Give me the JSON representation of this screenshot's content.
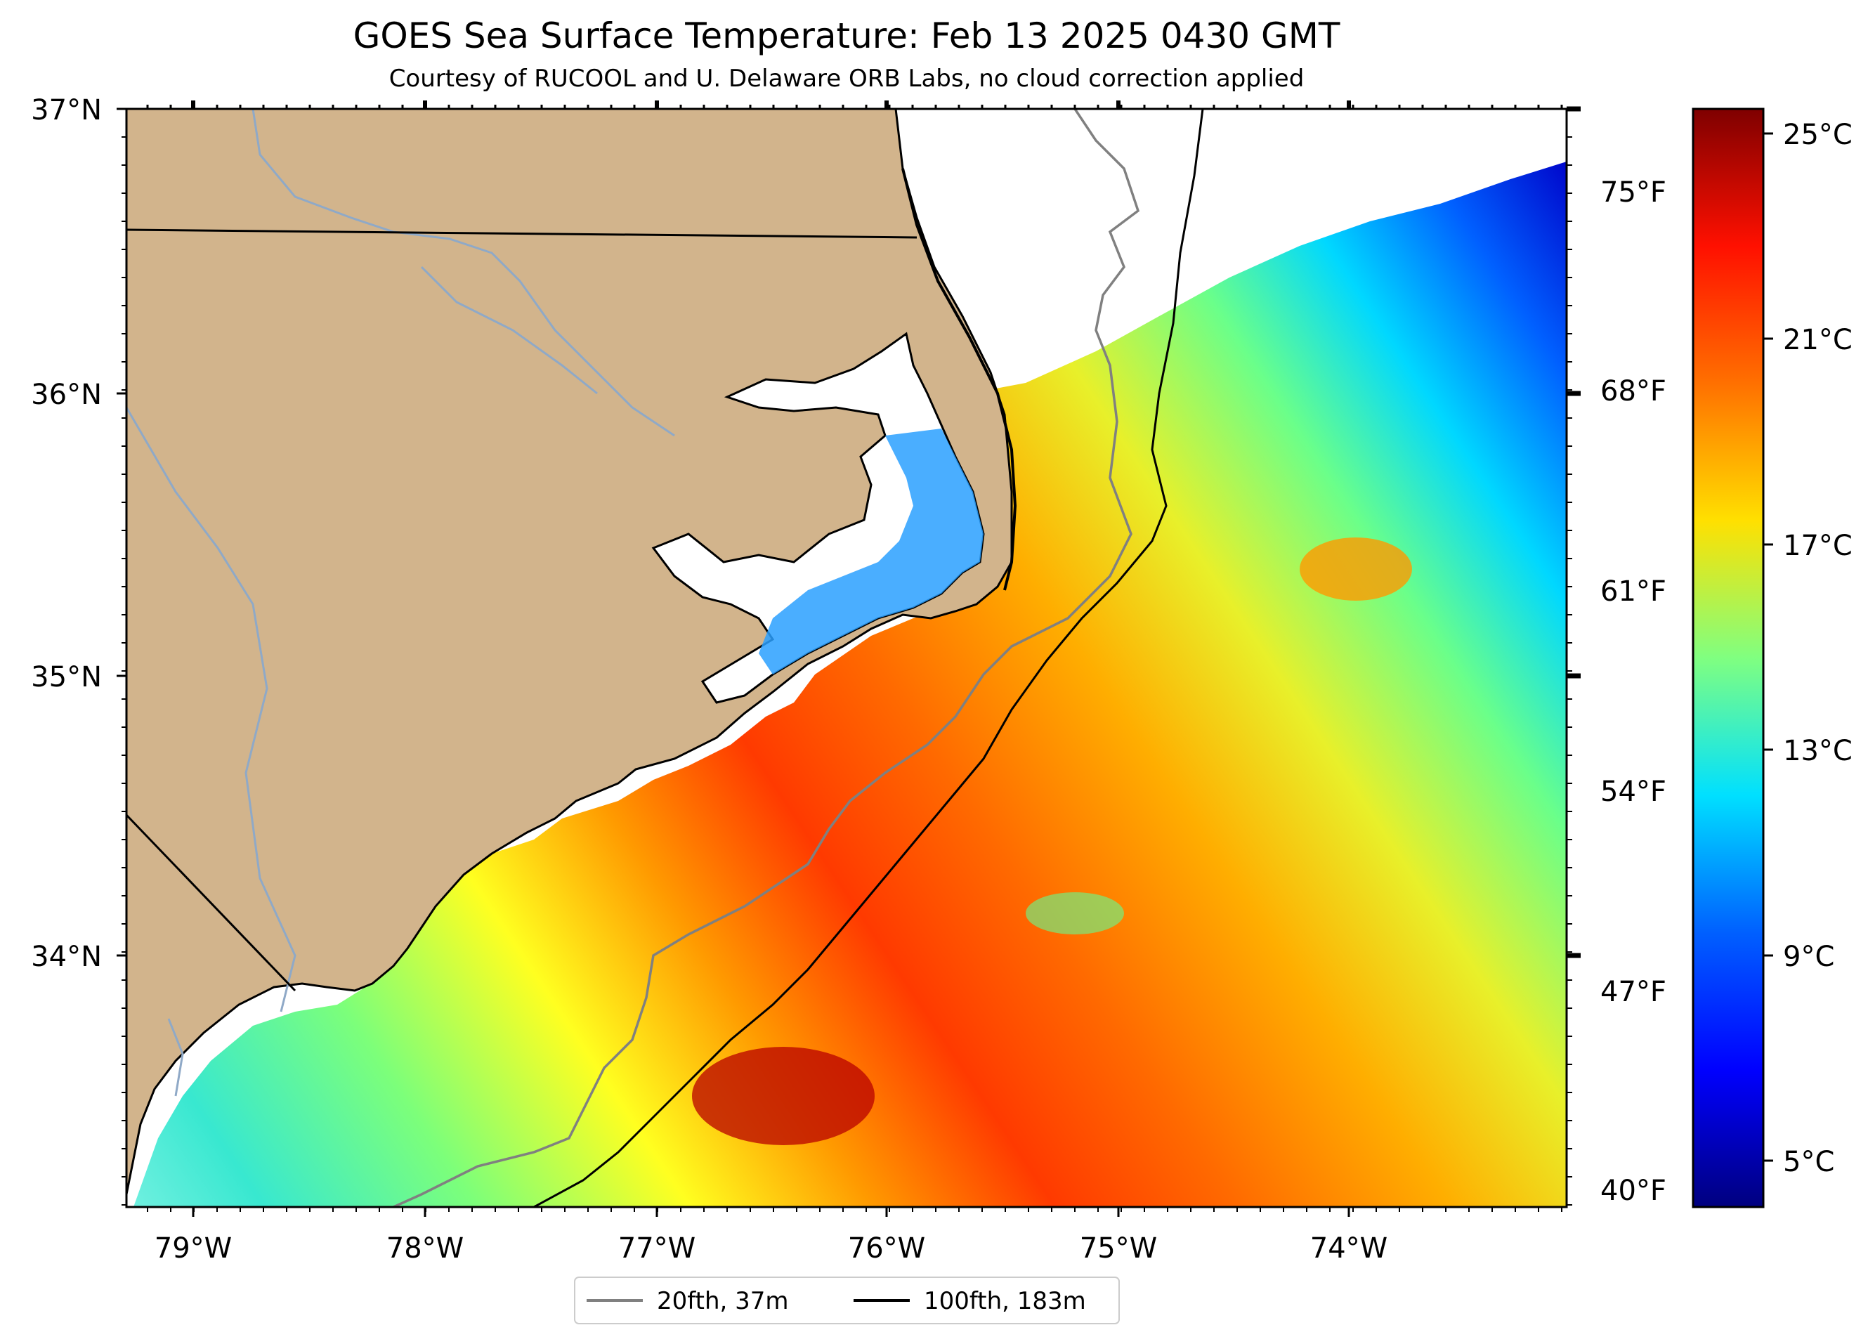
{
  "title": "GOES Sea Surface Temperature: Feb 13 2025 0430 GMT",
  "subtitle": "Courtesy of RUCOOL and U. Delaware ORB Labs, no cloud correction applied",
  "colors": {
    "land": "#d2b48c",
    "river": "#8fa9c7",
    "no_data": "#ffffff",
    "contour_20fth": "#808080",
    "contour_100fth": "#000000",
    "colormap": "jet"
  },
  "map": {
    "lon_range": [
      -79.3,
      -73.1
    ],
    "lat_range": [
      33.1,
      37.0
    ],
    "lat_labels": [
      "37°N",
      "36°N",
      "35°N",
      "34°N"
    ],
    "lon_labels": [
      "79°W",
      "78°W",
      "77°W",
      "76°W",
      "75°W",
      "74°W"
    ]
  },
  "fahrenheit_axis": {
    "labels": [
      "75°F",
      "68°F",
      "61°F",
      "54°F",
      "47°F",
      "40°F"
    ]
  },
  "colorbar": {
    "unit": "°C",
    "range": [
      3.8,
      26.0
    ],
    "labels": [
      "25°C",
      "21°C",
      "17°C",
      "13°C",
      "9°C",
      "5°C"
    ]
  },
  "legend": {
    "items": [
      {
        "label": "20fth, 37m"
      },
      {
        "label": "100fth, 183m"
      }
    ]
  }
}
